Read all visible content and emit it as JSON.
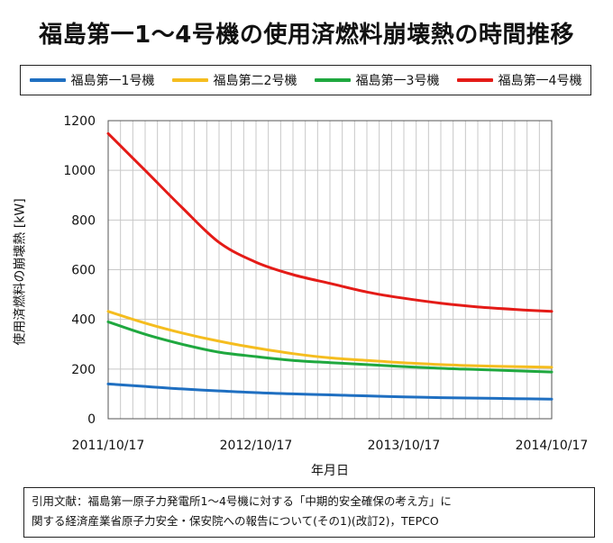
{
  "chart_data": {
    "type": "line",
    "title": "福島第一1～4号機の使用済燃料崩壊熱の時間推移",
    "xlabel": "年月日",
    "ylabel": "使用済燃料の崩壊熱 [kW]",
    "x_ticks": [
      "2011/10/17",
      "2012/10/17",
      "2013/10/17",
      "2014/10/17"
    ],
    "y_ticks": [
      0,
      200,
      400,
      600,
      800,
      1000,
      1200
    ],
    "xlim": [
      0,
      3
    ],
    "ylim": [
      0,
      1200
    ],
    "grid": true,
    "legend_position": "top",
    "x": [
      0,
      0.25,
      0.5,
      0.75,
      1.0,
      1.25,
      1.5,
      1.75,
      2.0,
      2.25,
      2.5,
      2.75,
      3.0
    ],
    "series": [
      {
        "name": "福島第一1号機",
        "color": "#1f6fc1",
        "values": [
          140,
          130,
          120,
          112,
          105,
          100,
          96,
          92,
          88,
          85,
          83,
          81,
          79
        ]
      },
      {
        "name": "福島第二2号機",
        "color": "#f5bd1f",
        "values": [
          432,
          385,
          345,
          312,
          285,
          262,
          245,
          235,
          225,
          218,
          213,
          210,
          207
        ]
      },
      {
        "name": "福島第一3号機",
        "color": "#1fa83f",
        "values": [
          390,
          340,
          300,
          268,
          250,
          235,
          226,
          218,
          210,
          203,
          198,
          193,
          188
        ]
      },
      {
        "name": "福島第一4号機",
        "color": "#e41b17",
        "values": [
          1148,
          1000,
          850,
          710,
          630,
          580,
          545,
          510,
          485,
          465,
          450,
          440,
          432
        ]
      }
    ]
  },
  "citation": {
    "line1": "引用文献：福島第一原子力発電所1～4号機に対する「中期的安全確保の考え方」に",
    "line2": "関する経済産業省原子力安全・保安院への報告について(その1)(改訂2)，TEPCO"
  }
}
